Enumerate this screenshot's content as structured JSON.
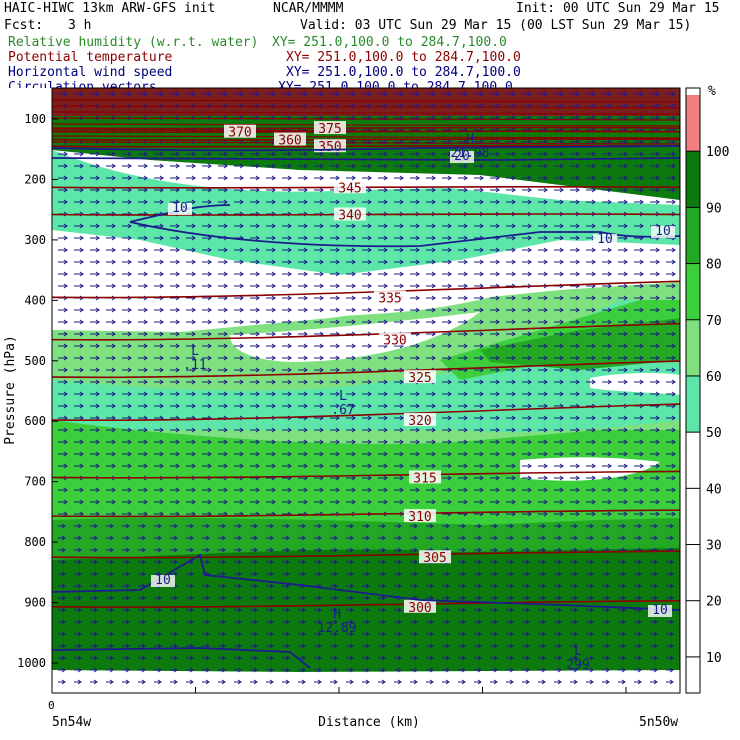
{
  "header": {
    "model_line": "HAIC-HIWC 13km ARW-GFS init",
    "org": "NCAR/MMMM",
    "init": "Init: 00 UTC Sun 29 Mar 15",
    "fcst_label": "Fcst:",
    "fcst_value": "3 h",
    "valid": "Valid: 03 UTC Sun 29 Mar 15 (00 LST Sun 29 Mar 15)"
  },
  "legend": [
    {
      "name": "Relative humidity (w.r.t. water)",
      "xy": "XY= 251.0,100.0 to 284.7,100.0",
      "color": "#2a8a2a"
    },
    {
      "name": "Potential temperature",
      "xy": "XY= 251.0,100.0 to 284.7,100.0",
      "color": "#8b0000"
    },
    {
      "name": "Horizontal wind speed",
      "xy": "XY= 251.0,100.0 to 284.7,100.0",
      "color": "#000080"
    },
    {
      "name": "Circulation vectors",
      "xy": "XY= 251.0,100.0 to 284.7,100.0",
      "color": "#000080"
    }
  ],
  "colors": {
    "theta": "#8b0000",
    "wind": "#1c1c8c",
    "vectors": "#1c1c8c",
    "rh_50_60": "#5ce6a8",
    "rh_60_70": "#7ee07e",
    "rh_70_80": "#3ccf3c",
    "rh_80_90": "#22a822",
    "rh_90_100": "#0d7a0d",
    "rh_100": "#f08080",
    "top_band": "#7a1e1e"
  },
  "chart_data": {
    "type": "cross-section",
    "ylabel": "Pressure (hPa)",
    "xlabel": "Distance (km)",
    "y_ticks": [
      100,
      200,
      300,
      400,
      500,
      600,
      700,
      800,
      900,
      1000
    ],
    "ylim": [
      1050,
      80
    ],
    "x_tick_zero": "0",
    "x_start_label": "5n54w",
    "x_end_label": "5n50w",
    "colorbar": {
      "unit": "%",
      "ticks": [
        10,
        20,
        30,
        40,
        50,
        60,
        70,
        80,
        90,
        100
      ],
      "bands": [
        {
          "from": 50,
          "to": 60,
          "color": "#5ce6a8"
        },
        {
          "from": 60,
          "to": 70,
          "color": "#7ee07e"
        },
        {
          "from": 70,
          "to": 80,
          "color": "#3ccf3c"
        },
        {
          "from": 80,
          "to": 90,
          "color": "#22a822"
        },
        {
          "from": 90,
          "to": 100,
          "color": "#0d7a0d"
        },
        {
          "from": 100,
          "to": 110,
          "color": "#f08080"
        }
      ]
    },
    "theta_contours": [
      {
        "label": "375",
        "p": 115
      },
      {
        "label": "370",
        "p": 121
      },
      {
        "label": "360",
        "p": 134
      },
      {
        "label": "350",
        "p": 145
      },
      {
        "label": "345",
        "p": 213
      },
      {
        "label": "340",
        "p": 258
      },
      {
        "label": "335",
        "p": 395
      },
      {
        "label": "330",
        "p": 465
      },
      {
        "label": "325",
        "p": 527
      },
      {
        "label": "320",
        "p": 598
      },
      {
        "label": "315",
        "p": 693
      },
      {
        "label": "310",
        "p": 757
      },
      {
        "label": "305",
        "p": 825
      },
      {
        "label": "300",
        "p": 907
      }
    ],
    "wind_labels": [
      "10",
      "10",
      "10",
      "10",
      "10",
      "20"
    ],
    "annotations": [
      {
        "mark": "L",
        "value": ".11"
      },
      {
        "mark": "L",
        "value": ".67"
      },
      {
        "mark": "H",
        "value": "12.89"
      },
      {
        "mark": "L",
        "value": "299"
      },
      {
        "mark": "H",
        "value": "21.98"
      }
    ]
  }
}
